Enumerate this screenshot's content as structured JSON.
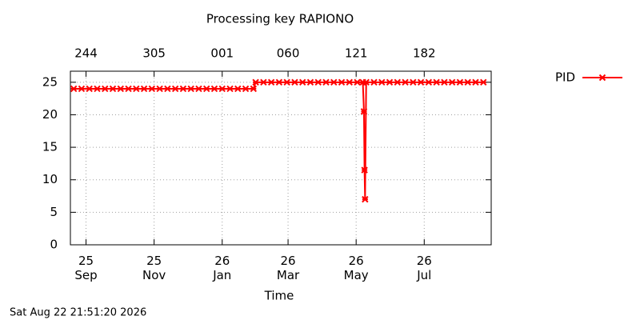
{
  "chart_data": {
    "type": "line",
    "title": "Processing key RAPIONO",
    "xlabel": "Time",
    "timestamp": "Sat Aug 22 21:51:20 2026",
    "x": [
      -11,
      -4,
      3,
      10,
      17,
      24,
      31,
      38,
      45,
      52,
      59,
      66,
      73,
      80,
      87,
      94,
      101,
      108,
      115,
      122,
      129,
      136,
      143,
      150,
      152,
      159,
      166,
      173,
      180,
      187,
      194,
      201,
      208,
      215,
      222,
      229,
      236,
      243,
      248,
      249,
      249.5,
      250,
      251,
      258,
      265,
      272,
      279,
      286,
      293,
      300,
      307,
      314,
      321,
      328,
      335,
      342,
      349,
      356
    ],
    "series": [
      {
        "name": "PID",
        "color": "#ff0000",
        "values": [
          24,
          24,
          24,
          24,
          24,
          24,
          24,
          24,
          24,
          24,
          24,
          24,
          24,
          24,
          24,
          24,
          24,
          24,
          24,
          24,
          24,
          24,
          24,
          24,
          25,
          25,
          25,
          25,
          25,
          25,
          25,
          25,
          25,
          25,
          25,
          25,
          25,
          25,
          25,
          20.5,
          11.5,
          7,
          25,
          25,
          25,
          25,
          25,
          25,
          25,
          25,
          25,
          25,
          25,
          25,
          25,
          25,
          25,
          25
        ]
      }
    ],
    "xlim": [
      -14,
      363
    ],
    "ylim": [
      0,
      26.7
    ],
    "yticks": [
      0,
      5,
      10,
      15,
      20,
      25
    ],
    "xticks": [
      {
        "value": 0,
        "label": "25\nSep"
      },
      {
        "value": 61,
        "label": "25\nNov"
      },
      {
        "value": 122,
        "label": "26\nJan"
      },
      {
        "value": 181,
        "label": "26\nMar"
      },
      {
        "value": 242,
        "label": "26\nMay"
      },
      {
        "value": 303,
        "label": "26\nJul"
      }
    ],
    "x2ticks": [
      {
        "value": 0,
        "label": "244"
      },
      {
        "value": 61,
        "label": "305"
      },
      {
        "value": 122,
        "label": "001"
      },
      {
        "value": 181,
        "label": "060"
      },
      {
        "value": 242,
        "label": "121"
      },
      {
        "value": 303,
        "label": "182"
      }
    ],
    "grid": true,
    "legend": "right"
  }
}
